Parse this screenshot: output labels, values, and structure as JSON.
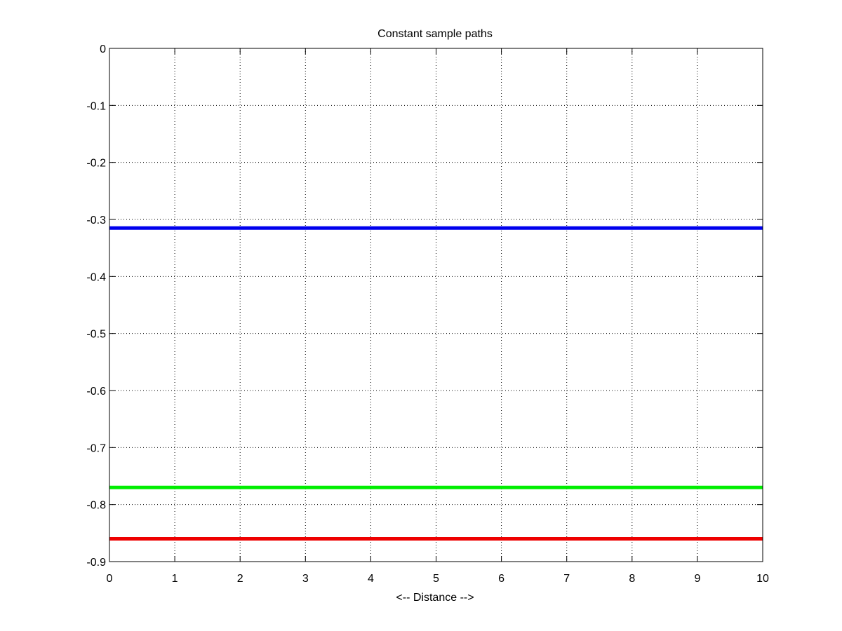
{
  "chart_data": {
    "type": "line",
    "title": "Constant sample paths",
    "xlabel": "<-- Distance -->",
    "ylabel": "",
    "xlim": [
      0,
      10
    ],
    "ylim": [
      -0.9,
      0
    ],
    "xticks": [
      0,
      1,
      2,
      3,
      4,
      5,
      6,
      7,
      8,
      9,
      10
    ],
    "yticks": [
      0,
      -0.1,
      -0.2,
      -0.3,
      -0.4,
      -0.5,
      -0.6,
      -0.7,
      -0.8,
      -0.9
    ],
    "ytick_labels": [
      "0",
      "-0.1",
      "-0.2",
      "-0.3",
      "-0.4",
      "-0.5",
      "-0.6",
      "-0.7",
      "-0.8",
      "-0.9"
    ],
    "grid": true,
    "series": [
      {
        "color": "#0000ee",
        "x": [
          0,
          10
        ],
        "y": [
          -0.315,
          -0.315
        ]
      },
      {
        "color": "#00ee00",
        "x": [
          0,
          10
        ],
        "y": [
          -0.77,
          -0.77
        ]
      },
      {
        "color": "#ee0000",
        "x": [
          0,
          10
        ],
        "y": [
          -0.86,
          -0.86
        ]
      }
    ]
  }
}
